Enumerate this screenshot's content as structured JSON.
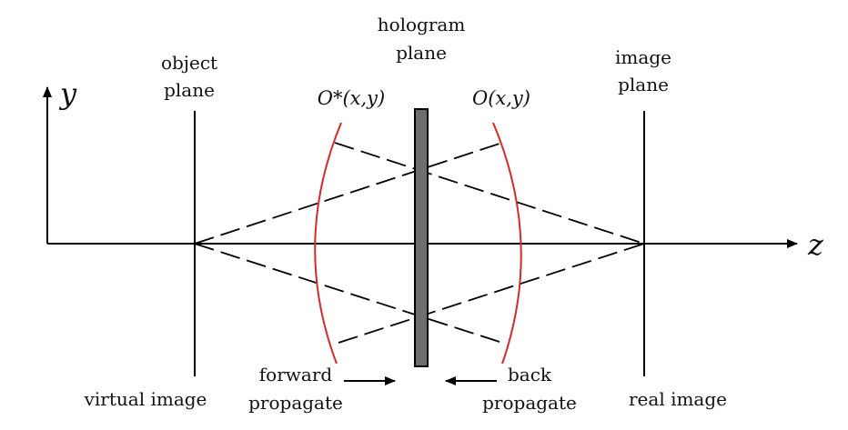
{
  "axes": {
    "y_label": "y",
    "z_label": "z"
  },
  "labels": {
    "object_plane": [
      "object",
      "plane"
    ],
    "hologram_plane": [
      "hologram",
      "plane"
    ],
    "image_plane": [
      "image",
      "plane"
    ],
    "conjugate_wave": "O*(x,y)",
    "object_wave": "O(x,y)",
    "virtual_image": "virtual image",
    "real_image": "real image",
    "forward_propagate": [
      "forward",
      "propagate"
    ],
    "back_propagate": [
      "back",
      "propagate"
    ]
  },
  "colors": {
    "line": "#000000",
    "wavefront": "#d42a2a",
    "hologram_fill": "#6e6e6e"
  }
}
